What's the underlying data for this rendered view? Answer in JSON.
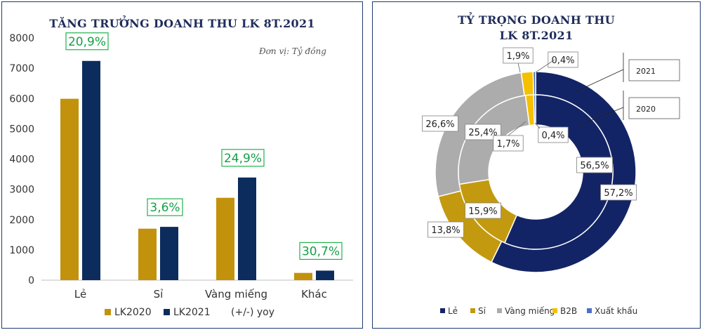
{
  "colors": {
    "le": "#132466",
    "si": "#c39a0f",
    "vang": "#acacac",
    "b2b": "#f5c000",
    "xk": "#4a70c9",
    "lk2020": "#c3920c",
    "lk2021": "#0c2c5e",
    "yoy_border": "#22b24c",
    "yoy_text": "#14a046"
  },
  "chart_data": [
    {
      "type": "bar",
      "title": "TĂNG TRƯỞNG DOANH THU LK 8T.2021",
      "unit_note": "Đơn vị: Tỷ đồng",
      "categories": [
        "Lẻ",
        "Sỉ",
        "Vàng miếng",
        "Khác"
      ],
      "series": [
        {
          "name": "LK2020",
          "values": [
            5990,
            1700,
            2720,
            240
          ]
        },
        {
          "name": "LK2021",
          "values": [
            7240,
            1760,
            3390,
            315
          ]
        }
      ],
      "yoy_labels": [
        "20,9%",
        "3,6%",
        "24,9%",
        "30,7%"
      ],
      "yoy_legend": "(+/-) yoy",
      "y_ticks": [
        "0",
        "1000",
        "2000",
        "3000",
        "4000",
        "5000",
        "6000",
        "7000",
        "8000"
      ],
      "ylim": [
        0,
        8000
      ]
    },
    {
      "type": "pie",
      "title_line1": "TỶ TRỌNG DOANH THU",
      "title_line2": "LK 8T.2021",
      "categories": [
        "Lẻ",
        "Sỉ",
        "Vàng miếng",
        "B2B",
        "Xuất khẩu"
      ],
      "series": [
        {
          "name": "2021",
          "values": [
            57.2,
            13.8,
            26.6,
            1.9,
            0.4
          ],
          "labels": [
            "57,2%",
            "13,8%",
            "26,6%",
            "1,9%",
            "0,4%"
          ]
        },
        {
          "name": "2020",
          "values": [
            56.5,
            15.9,
            25.4,
            1.7,
            0.4
          ],
          "labels": [
            "56,5%",
            "15,9%",
            "25,4%",
            "1,7%",
            "0,4%"
          ]
        }
      ]
    }
  ]
}
